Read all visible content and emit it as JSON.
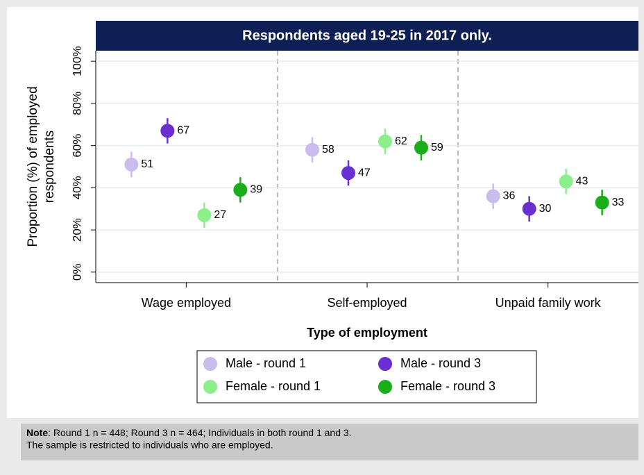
{
  "chart_data": {
    "type": "dot",
    "title": "Respondents aged 19-25 in 2017 only.",
    "ylabel": [
      "Proportion (%) of employed",
      "respondents"
    ],
    "xlabel": "Type of employment",
    "categories": [
      "Wage employed",
      "Self-employed",
      "Unpaid family work"
    ],
    "series": [
      {
        "name": "Male - round 1",
        "color": "#cbbcee",
        "values": [
          51,
          58,
          36
        ],
        "errors": [
          6,
          6,
          6
        ]
      },
      {
        "name": "Male - round 3",
        "color": "#6a2fd0",
        "values": [
          67,
          47,
          30
        ],
        "errors": [
          6,
          6,
          6
        ]
      },
      {
        "name": "Female - round 1",
        "color": "#8cef8c",
        "values": [
          27,
          62,
          43
        ],
        "errors": [
          6,
          6,
          6
        ]
      },
      {
        "name": "Female - round 3",
        "color": "#1aae1a",
        "values": [
          39,
          59,
          33
        ],
        "errors": [
          6,
          6,
          6
        ]
      }
    ],
    "ylim": [
      -5,
      105
    ],
    "yticks": [
      {
        "value": 0,
        "label": "0%"
      },
      {
        "value": 20,
        "label": "20%"
      },
      {
        "value": 40,
        "label": "40%"
      },
      {
        "value": 60,
        "label": "60%"
      },
      {
        "value": 80,
        "label": "80%"
      },
      {
        "value": 100,
        "label": "100%"
      }
    ],
    "grid": true,
    "note": {
      "bold": "Note",
      "lines": [
        ": Round 1 n = 448; Round 3 n = 464; Individuals in both round 1 and 3.",
        "The sample is restricted to individuals who are employed."
      ]
    }
  }
}
